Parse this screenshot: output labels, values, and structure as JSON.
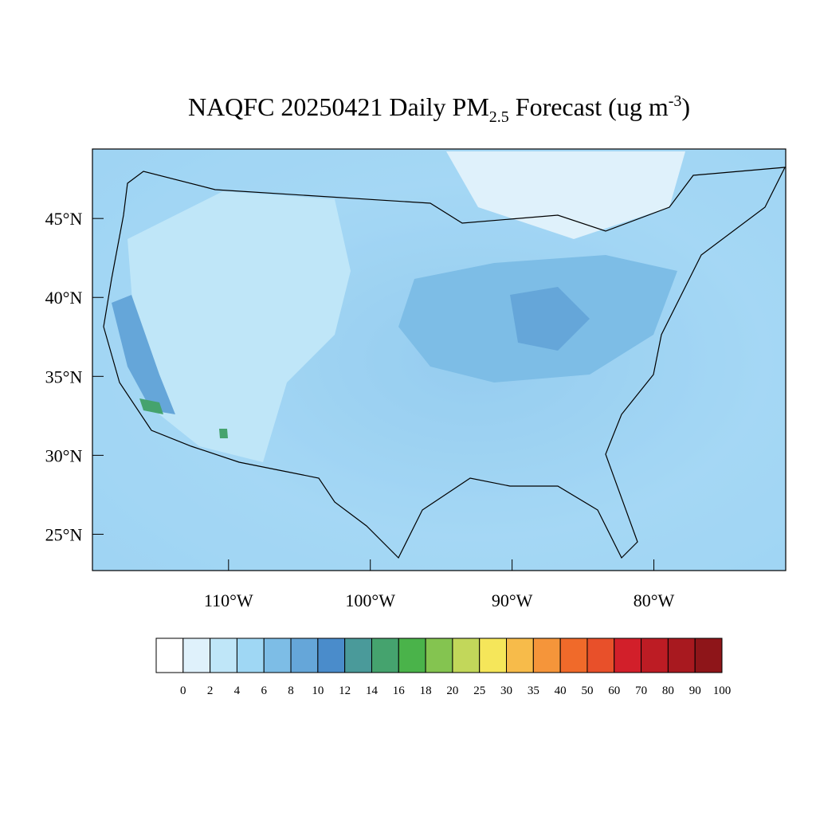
{
  "chart_data": {
    "type": "map",
    "title": {
      "main": "NAQFC 20250421 Daily PM",
      "subscript": "2.5",
      "rest": " Forecast (ug m",
      "superscript": "-3",
      "close": ")"
    },
    "xlim": [
      -119.6,
      -70.7
    ],
    "ylim": [
      22.7,
      49.4
    ],
    "xticks": [
      {
        "value": -110,
        "label": "110°W"
      },
      {
        "value": -100,
        "label": "100°W"
      },
      {
        "value": -90,
        "label": "90°W"
      },
      {
        "value": -80,
        "label": "80°W"
      }
    ],
    "yticks": [
      {
        "value": 45,
        "label": "45°N"
      },
      {
        "value": 40,
        "label": "40°N"
      },
      {
        "value": 35,
        "label": "35°N"
      },
      {
        "value": 30,
        "label": "30°N"
      },
      {
        "value": 25,
        "label": "25°N"
      }
    ],
    "colorbar": {
      "colors": [
        "#ffffff",
        "#dff1fb",
        "#bfe6f8",
        "#9fd7f4",
        "#7dbde6",
        "#65a6d9",
        "#4a8ccb",
        "#4a9a9a",
        "#45a36e",
        "#4ab34a",
        "#84c450",
        "#c2d75a",
        "#f5e65a",
        "#f7bb4a",
        "#f5953a",
        "#f06a2a",
        "#e8502a",
        "#d21f2a",
        "#bd1c24",
        "#a8191f",
        "#8e1519"
      ],
      "ticks": [
        0,
        2,
        4,
        6,
        8,
        10,
        12,
        14,
        16,
        18,
        20,
        25,
        30,
        35,
        40,
        50,
        60,
        70,
        80,
        90,
        100
      ]
    }
  }
}
